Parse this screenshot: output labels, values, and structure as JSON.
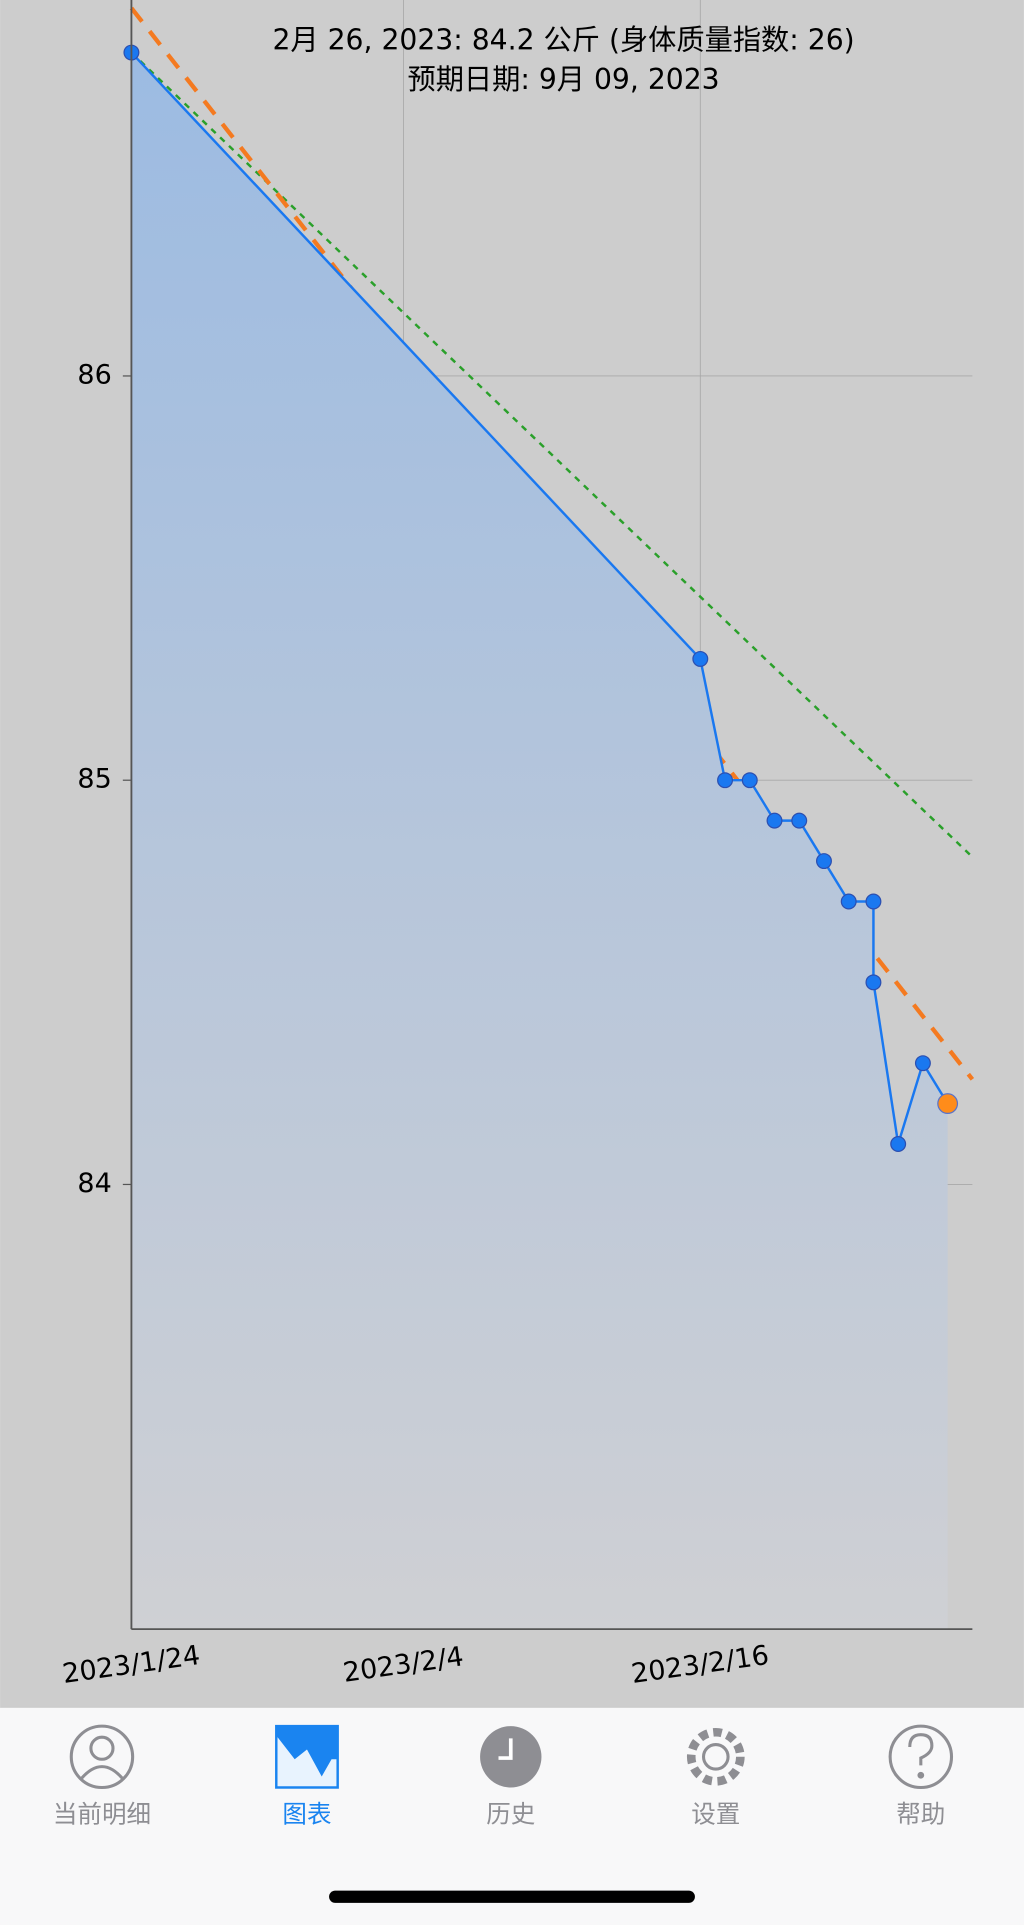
{
  "header": {
    "line1": "2月 26, 2023: 84.2 公斤 (身体质量指数: 26)",
    "line2": "预期日期: 9月 09, 2023"
  },
  "chart_data": {
    "type": "line",
    "xlim": [
      "2023-01-24",
      "2023-02-27"
    ],
    "xticks": [
      {
        "value": "2023-01-24",
        "label": "2023/1/24"
      },
      {
        "value": "2023-02-04",
        "label": "2023/2/4"
      },
      {
        "value": "2023-02-16",
        "label": "2023/2/16"
      }
    ],
    "ylim": [
      82.9,
      86.93
    ],
    "yticks": [
      84,
      85,
      86
    ],
    "grid": true,
    "series": [
      {
        "color": "#1a78f0",
        "fill": true,
        "markers": true,
        "x": [
          "2023-01-24",
          "2023-02-16",
          "2023-02-17",
          "2023-02-18",
          "2023-02-19",
          "2023-02-20",
          "2023-02-21",
          "2023-02-22",
          "2023-02-23",
          "2023-02-23",
          "2023-02-24",
          "2023-02-25",
          "2023-02-26"
        ],
        "values": [
          86.8,
          85.3,
          85.0,
          85.0,
          84.9,
          84.9,
          84.8,
          84.7,
          84.7,
          84.5,
          84.1,
          84.3,
          84.2
        ],
        "highlight_last": "#ff8c1a"
      },
      {
        "color": "#f47a20",
        "dash": "14 10",
        "x": [
          "2023-01-24",
          "2023-02-27"
        ],
        "values": [
          86.91,
          84.26
        ]
      },
      {
        "color": "#2aa02a",
        "dash": "5 5",
        "x": [
          "2023-01-24",
          "2023-02-27"
        ],
        "values": [
          86.8,
          84.81
        ]
      }
    ]
  },
  "tabs": [
    {
      "label": "当前明细"
    },
    {
      "label": "图表",
      "active": true
    },
    {
      "label": "历史"
    },
    {
      "label": "设置"
    },
    {
      "label": "帮助"
    }
  ]
}
